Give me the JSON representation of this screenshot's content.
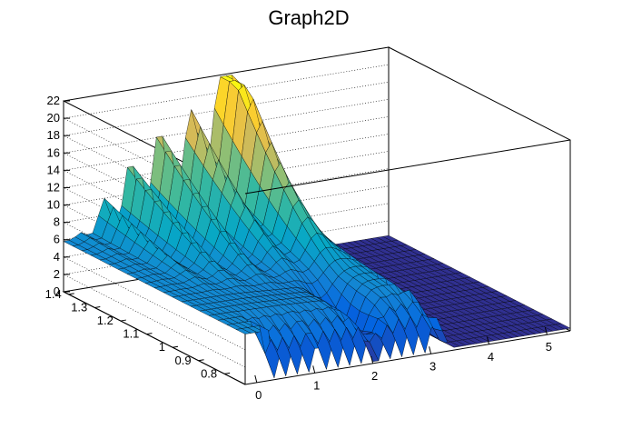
{
  "chart_data": {
    "type": "surface",
    "title": "Graph2D",
    "xlabel": "",
    "ylabel": "",
    "zlabel": "",
    "xlim": [
      -0.2,
      5.4
    ],
    "ylim": [
      0.72,
      1.42
    ],
    "zlim": [
      0,
      22
    ],
    "x_ticks": [
      "0",
      "1",
      "2",
      "3",
      "4",
      "5"
    ],
    "y_ticks": [
      "0.8",
      "0.9",
      "1",
      "1.1",
      "1.2",
      "1.3",
      "1.4"
    ],
    "z_ticks": [
      "0",
      "2",
      "4",
      "6",
      "8",
      "10",
      "12",
      "14",
      "16",
      "18",
      "20",
      "22"
    ],
    "grid": true,
    "colormap": [
      "#352a87",
      "#0363e1",
      "#1485d4",
      "#06a7c6",
      "#38b99e",
      "#92bf73",
      "#d9ba56",
      "#fcce2e",
      "#f9fb0e"
    ],
    "surface_features": {
      "plateau_height": 5.8,
      "plateau_x_range": [
        -0.2,
        3.0
      ],
      "bands_at_x": [
        0.1,
        0.5,
        0.95,
        1.45,
        2.0,
        2.55
      ],
      "band_peak_z": [
        6.5,
        10,
        14,
        17,
        18.5,
        21.5
      ],
      "low_region_x_range": [
        3.1,
        5.4
      ],
      "low_region_z": 0.3
    }
  }
}
